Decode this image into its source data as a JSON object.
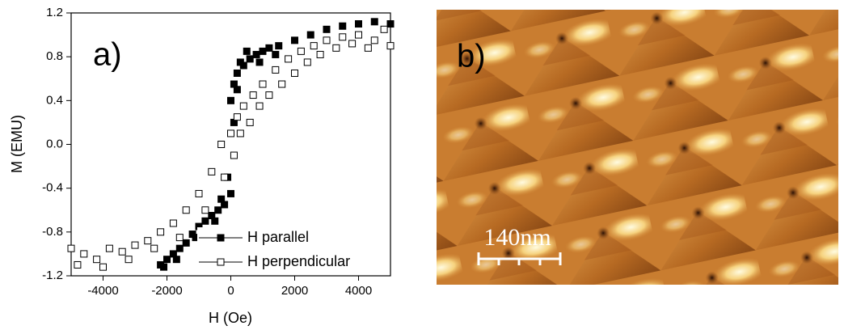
{
  "chart_data": {
    "type": "scatter",
    "annotation": "a)",
    "x_label": "H (Oe)",
    "y_label": "M (EMU)",
    "xlim": [
      -5000,
      5000
    ],
    "ylim": [
      -1.2,
      1.2
    ],
    "xticks": [
      -4000,
      -2000,
      0,
      2000,
      4000
    ],
    "yticks": [
      -1.2,
      -0.8,
      -0.4,
      {
        "value": 0,
        "label": "0.0"
      },
      0.4,
      0.8,
      1.2
    ],
    "legend": "lower right",
    "series": [
      {
        "name": "H parallel",
        "color": "#000000",
        "filled": true,
        "x": [
          -2200,
          -2000,
          -1800,
          -1600,
          -1400,
          -1200,
          -1000,
          -800,
          -600,
          -400,
          -200,
          0,
          100,
          0,
          100,
          200,
          400,
          600,
          800,
          1000,
          1200,
          1500,
          2000,
          2500,
          3000,
          3500,
          4000,
          4500,
          5000,
          -2100,
          -1700,
          -1100,
          -500,
          -300,
          200,
          500,
          900,
          1400,
          300,
          -100
        ],
        "y": [
          -1.1,
          -1.05,
          -1.0,
          -0.95,
          -0.9,
          -0.82,
          -0.75,
          -0.7,
          -0.65,
          -0.6,
          -0.55,
          -0.45,
          0.2,
          0.4,
          0.55,
          0.65,
          0.72,
          0.78,
          0.82,
          0.85,
          0.88,
          0.9,
          0.95,
          1.0,
          1.05,
          1.08,
          1.1,
          1.12,
          1.1,
          -1.12,
          -1.05,
          -0.85,
          -0.7,
          -0.5,
          0.5,
          0.85,
          0.75,
          0.82,
          0.75,
          -0.3
        ]
      },
      {
        "name": "H perpendicular",
        "color": "#000000",
        "filled": false,
        "x": [
          -5000,
          -4600,
          -4200,
          -3800,
          -3400,
          -3000,
          -2600,
          -2200,
          -1800,
          -1400,
          -1000,
          -600,
          -300,
          0,
          200,
          400,
          700,
          1000,
          1400,
          1800,
          2200,
          2600,
          3000,
          3500,
          4000,
          4500,
          5000,
          -4800,
          -4000,
          -3200,
          -2400,
          -1600,
          -800,
          -200,
          100,
          300,
          600,
          900,
          1200,
          1600,
          2000,
          2400,
          2800,
          3300,
          3800,
          4300,
          4800
        ],
        "y": [
          -0.95,
          -1.0,
          -1.05,
          -0.95,
          -0.98,
          -0.92,
          -0.88,
          -0.8,
          -0.72,
          -0.6,
          -0.45,
          -0.25,
          0.0,
          0.1,
          0.25,
          0.35,
          0.45,
          0.55,
          0.68,
          0.78,
          0.85,
          0.9,
          0.95,
          0.98,
          1.0,
          0.95,
          0.9,
          -1.1,
          -1.12,
          -1.05,
          -0.95,
          -0.85,
          -0.6,
          -0.3,
          -0.1,
          0.1,
          0.2,
          0.35,
          0.45,
          0.55,
          0.65,
          0.75,
          0.82,
          0.88,
          0.92,
          0.88,
          1.05
        ]
      }
    ]
  },
  "image": {
    "label": "b)",
    "scale_bar": "140nm"
  }
}
